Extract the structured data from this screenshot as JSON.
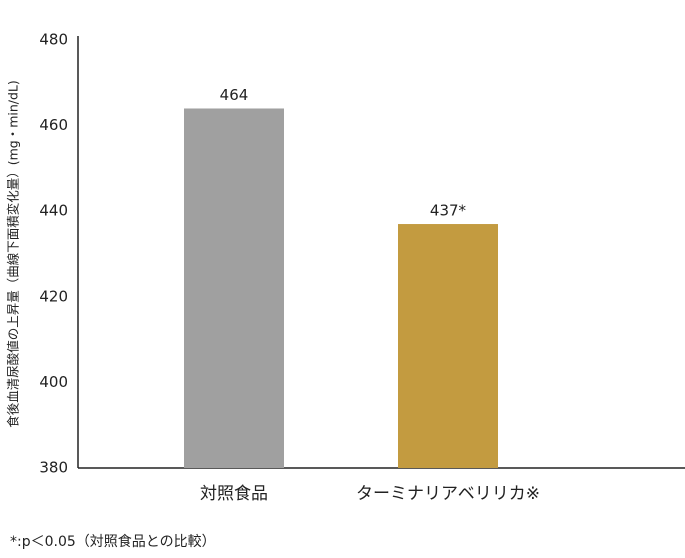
{
  "chart_data": {
    "type": "bar",
    "y_label": "食後血清尿酸値の上昇量（曲線下面積変化量）(mg・min/dL)",
    "categories": [
      "対照食品",
      "ターミナリアベリリカ※"
    ],
    "values": [
      464,
      437
    ],
    "value_labels": [
      "464",
      "437*"
    ],
    "colors": [
      "#a0a0a0",
      "#c39b40"
    ],
    "ylim": [
      380,
      480
    ],
    "yticks": [
      380,
      400,
      420,
      440,
      460,
      480
    ],
    "grid": false,
    "footnote": "*:p＜0.05（対照食品との比較）"
  }
}
